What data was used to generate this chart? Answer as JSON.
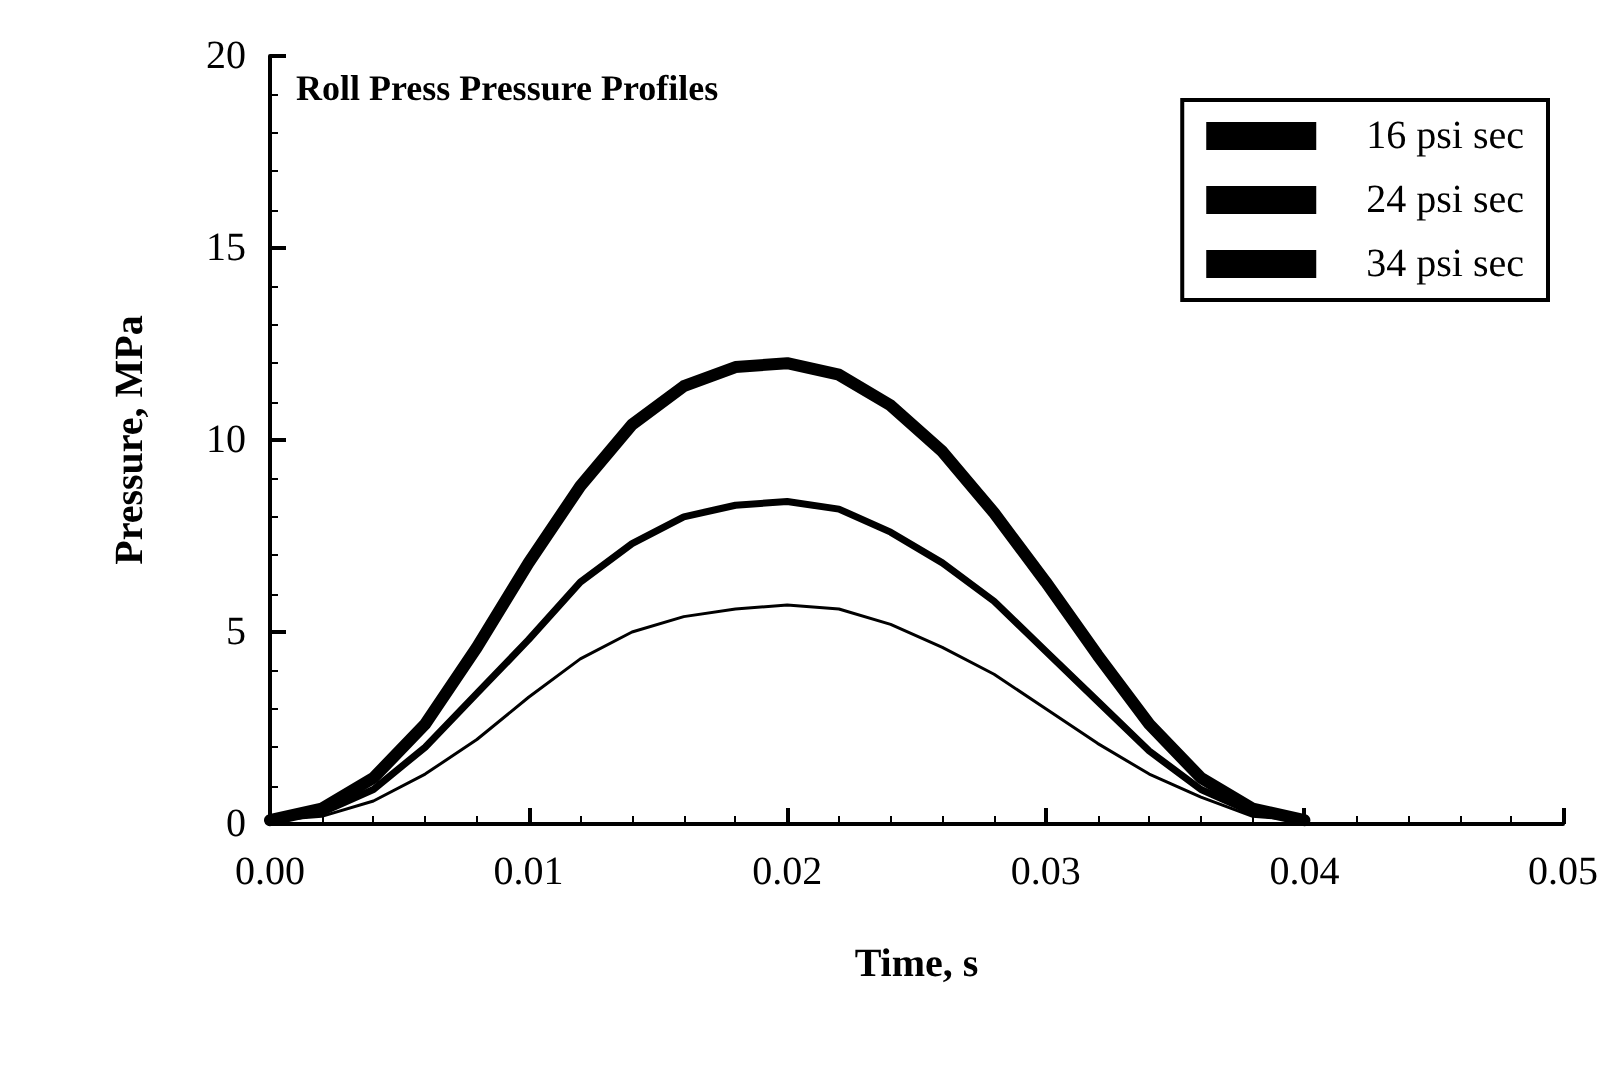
{
  "chart_data": {
    "type": "line",
    "title": "Roll Press Pressure Profiles",
    "xlabel": "Time, s",
    "ylabel": "Pressure, MPa",
    "x": [
      0,
      0.002,
      0.004,
      0.006,
      0.008,
      0.01,
      0.012,
      0.014,
      0.016,
      0.018,
      0.02,
      0.022,
      0.024,
      0.026,
      0.028,
      0.03,
      0.032,
      0.034,
      0.036,
      0.038,
      0.04
    ],
    "series": [
      {
        "name": "16 psi sec",
        "color": "#000000",
        "values": [
          0.1,
          0.2,
          0.6,
          1.3,
          2.2,
          3.3,
          4.3,
          5.0,
          5.4,
          5.6,
          5.7,
          5.6,
          5.2,
          4.6,
          3.9,
          3.0,
          2.1,
          1.3,
          0.7,
          0.2,
          0.1
        ]
      },
      {
        "name": "24 psi sec",
        "color": "#000000",
        "values": [
          0.1,
          0.3,
          0.9,
          2.0,
          3.4,
          4.8,
          6.3,
          7.3,
          8.0,
          8.3,
          8.4,
          8.2,
          7.6,
          6.8,
          5.8,
          4.5,
          3.2,
          1.9,
          0.9,
          0.3,
          0.1
        ]
      },
      {
        "name": "34 psi sec",
        "color": "#000000",
        "values": [
          0.1,
          0.4,
          1.2,
          2.6,
          4.6,
          6.8,
          8.8,
          10.4,
          11.4,
          11.9,
          12.0,
          11.7,
          10.9,
          9.7,
          8.1,
          6.3,
          4.4,
          2.6,
          1.2,
          0.4,
          0.1
        ]
      }
    ],
    "xlim": [
      0,
      0.05
    ],
    "xticks": [
      {
        "value": 0,
        "label": "0.00"
      },
      {
        "value": 0.01,
        "label": "0.01"
      },
      {
        "value": 0.02,
        "label": "0.02"
      },
      {
        "value": 0.03,
        "label": "0.03"
      },
      {
        "value": 0.04,
        "label": "0.04"
      },
      {
        "value": 0.05,
        "label": "0.05"
      }
    ],
    "ylim": [
      0,
      20
    ],
    "yticks": [
      0,
      5,
      10,
      15,
      20
    ],
    "grid": false,
    "legend": "top right",
    "marker": "none",
    "line_style": "solid"
  }
}
